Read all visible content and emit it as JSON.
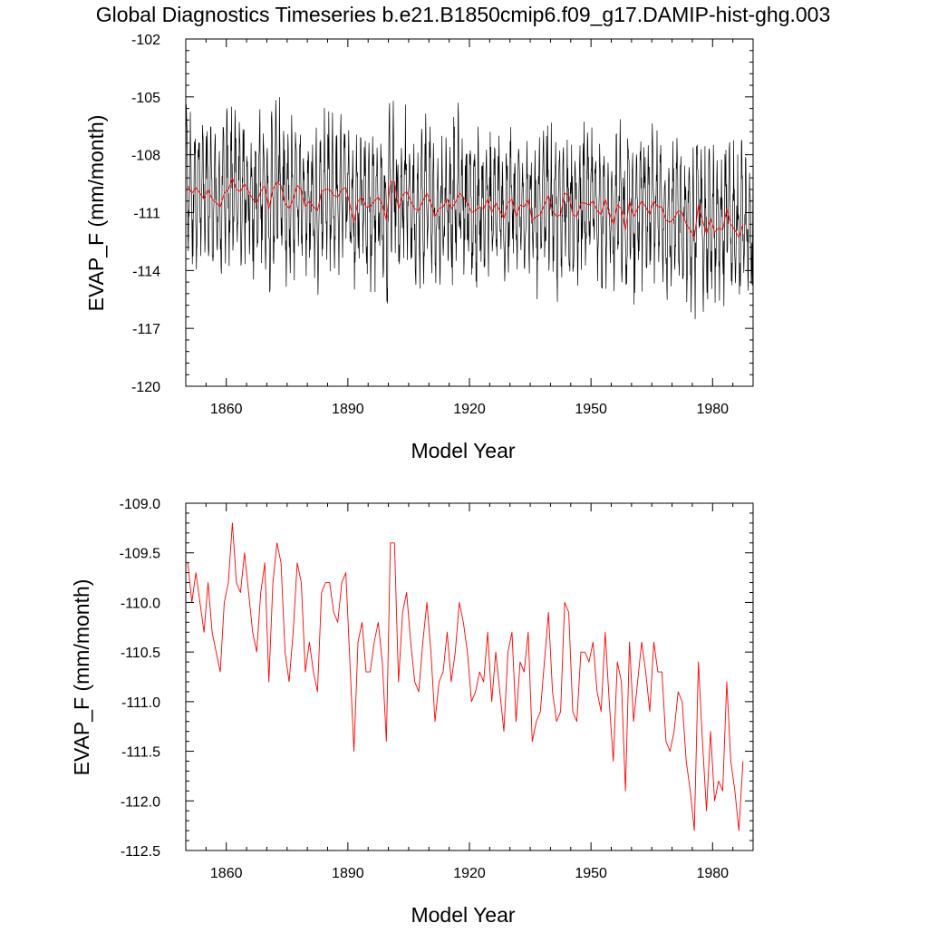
{
  "title": "Global Diagnostics Timeseries b.e21.B1850cmip6.f09_g17.DAMIP-hist-ghg.003",
  "colors": {
    "monthly": "#000000",
    "annual": "#ff0000"
  },
  "chart_data": [
    {
      "type": "line",
      "xlabel": "Model Year",
      "ylabel": "EVAP_F (mm/month)",
      "xlim": [
        1850,
        1990
      ],
      "ylim": [
        -120,
        -102
      ],
      "xticks": [
        1860,
        1890,
        1920,
        1950,
        1980
      ],
      "xtick_labels": [
        "1860",
        "1890",
        "1920",
        "1950",
        "1980"
      ],
      "yticks": [
        -120,
        -117,
        -114,
        -111,
        -108,
        -105,
        -102
      ],
      "ytick_labels": [
        "-120",
        "-117",
        "-114",
        "-111",
        "-108",
        "-105",
        "-102"
      ],
      "grid": false,
      "legend": "none",
      "series": [
        {
          "style": "monthly",
          "x_start": 1850.04,
          "x_step": 0.0833333,
          "seasonal_center": -110.8,
          "seasonal_amplitude": 2.9,
          "min": -118.1,
          "max": -104.8
        },
        {
          "style": "annual",
          "x_start": 1850.5,
          "x_step": 1,
          "values": [
            -109.6,
            -110.0,
            -109.7,
            -110.0,
            -110.3,
            -109.8,
            -110.3,
            -110.5,
            -110.7,
            -110.0,
            -109.8,
            -109.2,
            -109.8,
            -109.9,
            -109.5,
            -109.9,
            -110.3,
            -110.5,
            -109.9,
            -109.6,
            -110.8,
            -109.8,
            -109.4,
            -109.6,
            -110.5,
            -110.8,
            -110.3,
            -109.6,
            -109.8,
            -110.7,
            -110.4,
            -110.7,
            -110.9,
            -109.9,
            -109.8,
            -109.8,
            -110.1,
            -110.2,
            -109.8,
            -109.7,
            -110.6,
            -111.5,
            -110.4,
            -110.2,
            -110.7,
            -110.7,
            -110.4,
            -110.2,
            -110.6,
            -111.4,
            -109.4,
            -109.4,
            -110.8,
            -110.1,
            -109.9,
            -110.4,
            -110.8,
            -110.9,
            -110.4,
            -110.0,
            -110.5,
            -111.2,
            -110.8,
            -110.7,
            -110.3,
            -110.8,
            -110.5,
            -110.0,
            -110.2,
            -110.5,
            -111.0,
            -110.9,
            -110.7,
            -110.8,
            -110.3,
            -111.0,
            -110.5,
            -110.9,
            -111.3,
            -110.5,
            -110.3,
            -111.2,
            -110.6,
            -110.7,
            -110.3,
            -111.4,
            -111.2,
            -111.1,
            -110.6,
            -110.1,
            -110.9,
            -111.2,
            -111.1,
            -110.0,
            -110.1,
            -111.1,
            -111.2,
            -110.5,
            -110.5,
            -110.6,
            -110.4,
            -110.9,
            -111.1,
            -110.3,
            -111.0,
            -111.6,
            -110.6,
            -110.8,
            -111.9,
            -110.4,
            -111.2,
            -110.8,
            -110.4,
            -110.7,
            -111.1,
            -110.4,
            -110.7,
            -110.7,
            -111.4,
            -111.5,
            -111.3,
            -110.9,
            -111.0,
            -111.6,
            -111.9,
            -112.3,
            -110.6,
            -111.4,
            -112.1,
            -111.3,
            -112.0,
            -111.8,
            -111.9,
            -110.8,
            -111.6,
            -111.9,
            -112.3,
            -111.6
          ],
          "min": -112.3,
          "max": -109.2
        }
      ]
    },
    {
      "type": "line",
      "xlabel": "Model Year",
      "ylabel": "EVAP_F (mm/month)",
      "xlim": [
        1850,
        1990
      ],
      "ylim": [
        -112.5,
        -109.0
      ],
      "xticks": [
        1860,
        1890,
        1920,
        1950,
        1980
      ],
      "xtick_labels": [
        "1860",
        "1890",
        "1920",
        "1950",
        "1980"
      ],
      "yticks": [
        -112.5,
        -112.0,
        -111.5,
        -111.0,
        -110.5,
        -110.0,
        -109.5,
        -109.0
      ],
      "ytick_labels": [
        "-112.5",
        "-112.0",
        "-111.5",
        "-111.0",
        "-110.5",
        "-110.0",
        "-109.5",
        "-109.0"
      ],
      "grid": false,
      "legend": "none",
      "series": [
        {
          "style": "annual",
          "x_start": 1850.5,
          "x_step": 1,
          "values": [
            -109.6,
            -110.0,
            -109.7,
            -110.0,
            -110.3,
            -109.8,
            -110.3,
            -110.5,
            -110.7,
            -110.0,
            -109.8,
            -109.2,
            -109.8,
            -109.9,
            -109.5,
            -109.9,
            -110.3,
            -110.5,
            -109.9,
            -109.6,
            -110.8,
            -109.8,
            -109.4,
            -109.6,
            -110.5,
            -110.8,
            -110.3,
            -109.6,
            -109.8,
            -110.7,
            -110.4,
            -110.7,
            -110.9,
            -109.9,
            -109.8,
            -109.8,
            -110.1,
            -110.2,
            -109.8,
            -109.7,
            -110.6,
            -111.5,
            -110.4,
            -110.2,
            -110.7,
            -110.7,
            -110.4,
            -110.2,
            -110.6,
            -111.4,
            -109.4,
            -109.4,
            -110.8,
            -110.1,
            -109.9,
            -110.4,
            -110.8,
            -110.9,
            -110.4,
            -110.0,
            -110.5,
            -111.2,
            -110.8,
            -110.7,
            -110.3,
            -110.8,
            -110.5,
            -110.0,
            -110.2,
            -110.5,
            -111.0,
            -110.9,
            -110.7,
            -110.8,
            -110.3,
            -111.0,
            -110.5,
            -110.9,
            -111.3,
            -110.5,
            -110.3,
            -111.2,
            -110.6,
            -110.7,
            -110.3,
            -111.4,
            -111.2,
            -111.1,
            -110.6,
            -110.1,
            -110.9,
            -111.2,
            -111.1,
            -110.0,
            -110.1,
            -111.1,
            -111.2,
            -110.5,
            -110.5,
            -110.6,
            -110.4,
            -110.9,
            -111.1,
            -110.3,
            -111.0,
            -111.6,
            -110.6,
            -110.8,
            -111.9,
            -110.4,
            -111.2,
            -110.8,
            -110.4,
            -110.7,
            -111.1,
            -110.4,
            -110.7,
            -110.7,
            -111.4,
            -111.5,
            -111.3,
            -110.9,
            -111.0,
            -111.6,
            -111.9,
            -112.3,
            -110.6,
            -111.4,
            -112.1,
            -111.3,
            -112.0,
            -111.8,
            -111.9,
            -110.8,
            -111.6,
            -111.9,
            -112.3,
            -111.6
          ]
        }
      ]
    }
  ]
}
